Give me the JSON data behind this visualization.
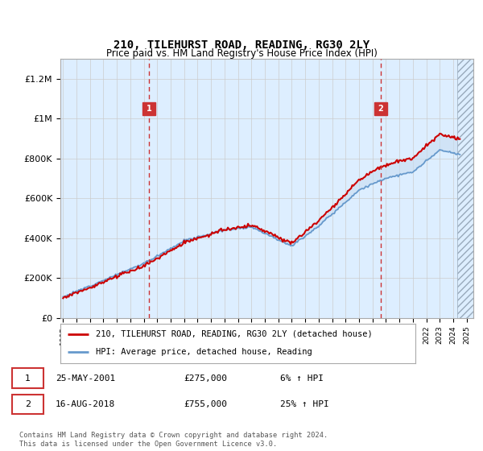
{
  "title": "210, TILEHURST ROAD, READING, RG30 2LY",
  "subtitle": "Price paid vs. HM Land Registry's House Price Index (HPI)",
  "ylabel_ticks": [
    "£0",
    "£200K",
    "£400K",
    "£600K",
    "£800K",
    "£1M",
    "£1.2M"
  ],
  "ytick_values": [
    0,
    200000,
    400000,
    600000,
    800000,
    1000000,
    1200000
  ],
  "ylim": [
    0,
    1300000
  ],
  "xlim_start": 1994.8,
  "xlim_end": 2025.5,
  "transaction1": {
    "date_label": "25-MAY-2001",
    "price": 275000,
    "year": 2001.38,
    "label": "1",
    "hpi_pct": "6% ↑ HPI"
  },
  "transaction2": {
    "date_label": "16-AUG-2018",
    "price": 755000,
    "year": 2018.62,
    "label": "2",
    "hpi_pct": "25% ↑ HPI"
  },
  "legend_line1": "210, TILEHURST ROAD, READING, RG30 2LY (detached house)",
  "legend_line2": "HPI: Average price, detached house, Reading",
  "footnote": "Contains HM Land Registry data © Crown copyright and database right 2024.\nThis data is licensed under the Open Government Licence v3.0.",
  "line_color_red": "#cc0000",
  "line_color_blue": "#6699cc",
  "fill_color": "#c8ddf0",
  "bg_color": "#ddeeff",
  "hatch_color": "#99aabb",
  "box_color": "#cc3333",
  "grid_color": "#cccccc",
  "marker_y": 1050000
}
